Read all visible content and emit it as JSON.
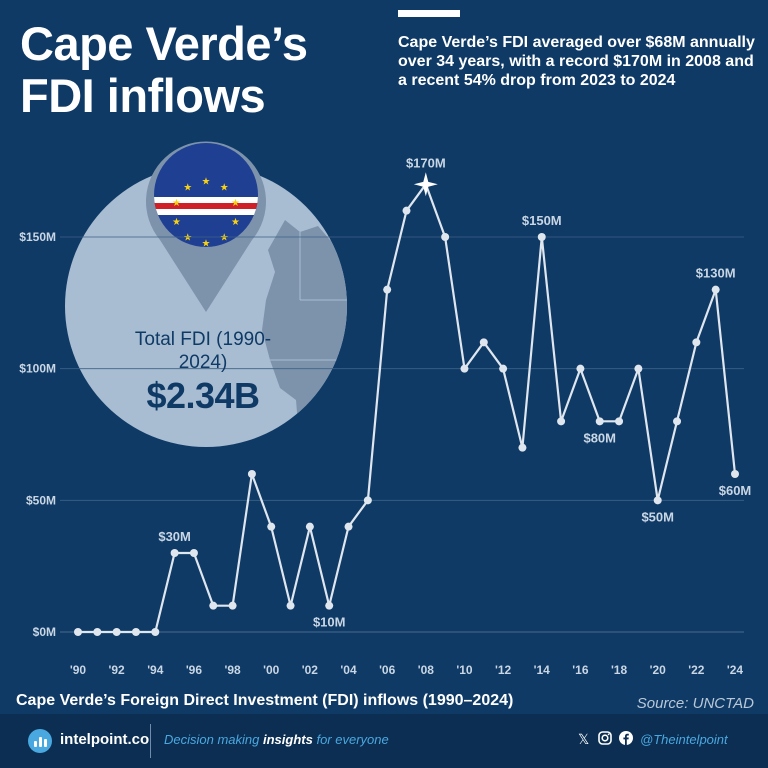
{
  "header": {
    "title": "Cape Verde’s FDI inflows",
    "subtitle": "Cape Verde’s FDI averaged over $68M annually over 34 years, with a record $170M in 2008 and a recent 54% drop from 2023 to 2024"
  },
  "callout": {
    "label": "Total FDI (1990-2024)",
    "value": "$2.34B"
  },
  "chart_caption": "Cape Verde’s Foreign Direct Investment (FDI) inflows (1990–2024)",
  "source": "Source: UNCTAD",
  "footer": {
    "brand": "intelpoint.co",
    "tagline_pre": "Decision making ",
    "tagline_bold": "insights",
    "tagline_post": " for everyone",
    "handle": "@Theintelpoint",
    "social_icons": [
      "x-icon",
      "instagram-icon",
      "facebook-icon"
    ]
  },
  "chart_data": {
    "type": "line",
    "x": [
      1990,
      1991,
      1992,
      1993,
      1994,
      1995,
      1996,
      1997,
      1998,
      1999,
      2000,
      2001,
      2002,
      2003,
      2004,
      2005,
      2006,
      2007,
      2008,
      2009,
      2010,
      2011,
      2012,
      2013,
      2014,
      2015,
      2016,
      2017,
      2018,
      2019,
      2020,
      2021,
      2022,
      2023,
      2024
    ],
    "series": [
      {
        "values": [
          0,
          0,
          0,
          0,
          0,
          30,
          30,
          10,
          10,
          60,
          40,
          10,
          40,
          10,
          40,
          50,
          130,
          160,
          170,
          150,
          100,
          110,
          100,
          70,
          150,
          80,
          100,
          80,
          80,
          100,
          50,
          80,
          110,
          130,
          60
        ]
      }
    ],
    "xticks": [
      "'90",
      "'92",
      "'94",
      "'96",
      "'98",
      "'00",
      "'02",
      "'04",
      "'06",
      "'08",
      "'10",
      "'12",
      "'14",
      "'16",
      "'18",
      "'20",
      "'22",
      "'24"
    ],
    "yticks": [
      "$0M",
      "$50M",
      "$100M",
      "$150M"
    ],
    "ytick_values": [
      0,
      50,
      100,
      150
    ],
    "ylim": [
      0,
      170
    ],
    "xlim": [
      1990,
      2024
    ],
    "grid": true,
    "annotations": [
      {
        "year": 1995,
        "text": "$30M",
        "pos": "above"
      },
      {
        "year": 2003,
        "text": "$10M",
        "pos": "below"
      },
      {
        "year": 2008,
        "text": "$170M",
        "pos": "above",
        "marker": "star"
      },
      {
        "year": 2014,
        "text": "$150M",
        "pos": "above"
      },
      {
        "year": 2017,
        "text": "$80M",
        "pos": "below"
      },
      {
        "year": 2020,
        "text": "$50M",
        "pos": "below"
      },
      {
        "year": 2023,
        "text": "$130M",
        "pos": "above"
      },
      {
        "year": 2024,
        "text": "$60M",
        "pos": "below"
      }
    ],
    "colors": {
      "line": "#dfe6ee",
      "grid": "#3d6287",
      "text": "#c9d6e4",
      "background": "#0f3a66"
    }
  }
}
